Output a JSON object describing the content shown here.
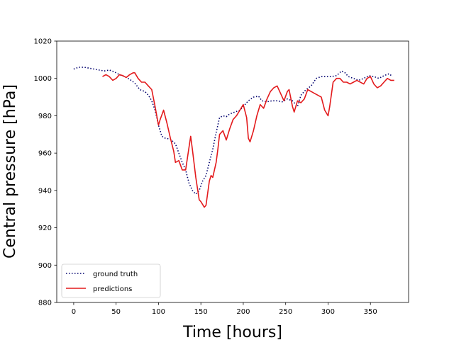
{
  "chart_data": {
    "type": "line",
    "title": "",
    "xlabel": "Time [hours]",
    "ylabel": "Central pressure [hPa]",
    "xlim": [
      -20,
      395
    ],
    "ylim": [
      880,
      1020
    ],
    "xticks": [
      0,
      50,
      100,
      150,
      200,
      250,
      300,
      350
    ],
    "yticks": [
      880,
      900,
      920,
      940,
      960,
      980,
      1000,
      1020
    ],
    "grid": false,
    "legend": "lower-left",
    "series": [
      {
        "name": "ground truth",
        "color": "#00006e",
        "style": "dotted",
        "points": [
          [
            0,
            1005
          ],
          [
            6,
            1006
          ],
          [
            12,
            1006
          ],
          [
            18,
            1005.5
          ],
          [
            24,
            1005
          ],
          [
            30,
            1004.5
          ],
          [
            36,
            1004
          ],
          [
            42,
            1004.5
          ],
          [
            48,
            1003.5
          ],
          [
            54,
            1002
          ],
          [
            60,
            1001
          ],
          [
            66,
            999.5
          ],
          [
            72,
            997.5
          ],
          [
            78,
            994
          ],
          [
            84,
            993
          ],
          [
            88,
            991
          ],
          [
            92,
            988
          ],
          [
            96,
            983
          ],
          [
            100,
            975
          ],
          [
            104,
            969
          ],
          [
            108,
            968
          ],
          [
            114,
            967.5
          ],
          [
            120,
            965
          ],
          [
            124,
            960
          ],
          [
            128,
            955
          ],
          [
            132,
            951
          ],
          [
            136,
            944
          ],
          [
            140,
            940
          ],
          [
            144,
            938
          ],
          [
            148,
            940
          ],
          [
            152,
            945
          ],
          [
            156,
            948
          ],
          [
            160,
            955
          ],
          [
            164,
            962
          ],
          [
            168,
            971
          ],
          [
            172,
            979
          ],
          [
            176,
            980
          ],
          [
            180,
            979.5
          ],
          [
            184,
            981
          ],
          [
            190,
            982
          ],
          [
            196,
            983
          ],
          [
            200,
            985
          ],
          [
            206,
            988
          ],
          [
            212,
            990
          ],
          [
            218,
            990.5
          ],
          [
            222,
            988
          ],
          [
            228,
            987.5
          ],
          [
            234,
            988
          ],
          [
            240,
            988
          ],
          [
            246,
            987.5
          ],
          [
            252,
            989
          ],
          [
            258,
            988
          ],
          [
            264,
            985
          ],
          [
            268,
            991
          ],
          [
            274,
            994
          ],
          [
            280,
            996
          ],
          [
            286,
            1000
          ],
          [
            292,
            1001
          ],
          [
            298,
            1001
          ],
          [
            304,
            1001
          ],
          [
            310,
            1001.5
          ],
          [
            316,
            1004
          ],
          [
            320,
            1003
          ],
          [
            324,
            1001
          ],
          [
            330,
            1000
          ],
          [
            336,
            999
          ],
          [
            342,
            1000
          ],
          [
            348,
            1001.5
          ],
          [
            354,
            1001
          ],
          [
            360,
            1000
          ],
          [
            366,
            1001.5
          ],
          [
            372,
            1002.5
          ],
          [
            376,
            1001
          ]
        ]
      },
      {
        "name": "predictions",
        "color": "#e31a1c",
        "style": "solid",
        "points": [
          [
            34,
            1001
          ],
          [
            38,
            1002
          ],
          [
            42,
            1001
          ],
          [
            46,
            999
          ],
          [
            50,
            1000
          ],
          [
            54,
            1002
          ],
          [
            58,
            1001.5
          ],
          [
            62,
            1000.5
          ],
          [
            66,
            1002
          ],
          [
            70,
            1003
          ],
          [
            72,
            1003
          ],
          [
            76,
            1000
          ],
          [
            80,
            998
          ],
          [
            84,
            998
          ],
          [
            88,
            996
          ],
          [
            92,
            994
          ],
          [
            96,
            985
          ],
          [
            100,
            975
          ],
          [
            102,
            978
          ],
          [
            106,
            983
          ],
          [
            110,
            976
          ],
          [
            114,
            968
          ],
          [
            118,
            961
          ],
          [
            120,
            955
          ],
          [
            124,
            956
          ],
          [
            128,
            951
          ],
          [
            132,
            951
          ],
          [
            136,
            963
          ],
          [
            138,
            969
          ],
          [
            140,
            962
          ],
          [
            144,
            947
          ],
          [
            148,
            935
          ],
          [
            150,
            934
          ],
          [
            154,
            931
          ],
          [
            156,
            932
          ],
          [
            160,
            945
          ],
          [
            162,
            948
          ],
          [
            164,
            947
          ],
          [
            166,
            951
          ],
          [
            168,
            955
          ],
          [
            170,
            962
          ],
          [
            172,
            970
          ],
          [
            176,
            972
          ],
          [
            180,
            967
          ],
          [
            184,
            973
          ],
          [
            188,
            978
          ],
          [
            192,
            980
          ],
          [
            196,
            983
          ],
          [
            200,
            986
          ],
          [
            204,
            979
          ],
          [
            206,
            968
          ],
          [
            208,
            966
          ],
          [
            212,
            972
          ],
          [
            216,
            980
          ],
          [
            220,
            986
          ],
          [
            224,
            984
          ],
          [
            228,
            989
          ],
          [
            232,
            993
          ],
          [
            236,
            995
          ],
          [
            240,
            996
          ],
          [
            244,
            992
          ],
          [
            248,
            988
          ],
          [
            252,
            993
          ],
          [
            254,
            994
          ],
          [
            258,
            985
          ],
          [
            260,
            982
          ],
          [
            264,
            988
          ],
          [
            268,
            987
          ],
          [
            272,
            989
          ],
          [
            276,
            994
          ],
          [
            280,
            993
          ],
          [
            284,
            992
          ],
          [
            288,
            991
          ],
          [
            292,
            990
          ],
          [
            296,
            983
          ],
          [
            300,
            980
          ],
          [
            302,
            985
          ],
          [
            306,
            998
          ],
          [
            310,
            1000
          ],
          [
            314,
            1000
          ],
          [
            318,
            998
          ],
          [
            322,
            998
          ],
          [
            326,
            997
          ],
          [
            330,
            998
          ],
          [
            334,
            999
          ],
          [
            338,
            998
          ],
          [
            342,
            997
          ],
          [
            346,
            1000
          ],
          [
            350,
            1001
          ],
          [
            354,
            997
          ],
          [
            358,
            995
          ],
          [
            362,
            996
          ],
          [
            366,
            998
          ],
          [
            370,
            1000
          ],
          [
            374,
            999
          ],
          [
            378,
            999
          ]
        ]
      }
    ]
  }
}
